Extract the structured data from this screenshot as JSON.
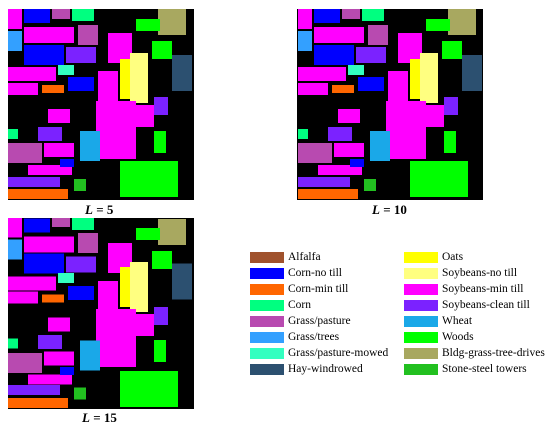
{
  "panels": [
    {
      "id": "l5",
      "caption_var": "L",
      "caption_eq": " = ",
      "caption_val": "5"
    },
    {
      "id": "l10",
      "caption_var": "L",
      "caption_eq": " = ",
      "caption_val": "10"
    },
    {
      "id": "l15",
      "caption_var": "L",
      "caption_eq": " = ",
      "caption_val": "15"
    }
  ],
  "legend": [
    {
      "label": "Alfalfa",
      "color": "#a0522d"
    },
    {
      "label": "Corn-no till",
      "color": "#0000ff"
    },
    {
      "label": "Corn-min till",
      "color": "#ff6600"
    },
    {
      "label": "Corn",
      "color": "#00ff80"
    },
    {
      "label": "Grass/pasture",
      "color": "#b84ab0"
    },
    {
      "label": "Grass/trees",
      "color": "#33a0ff"
    },
    {
      "label": "Grass/pasture-mowed",
      "color": "#33ffc0"
    },
    {
      "label": "Hay-windrowed",
      "color": "#2c5070"
    },
    {
      "label": "Oats",
      "color": "#ffff00"
    },
    {
      "label": "Soybeans-no till",
      "color": "#ffff80"
    },
    {
      "label": "Soybeans-min till",
      "color": "#ff00ff"
    },
    {
      "label": "Soybeans-clean till",
      "color": "#7b22ff"
    },
    {
      "label": "Wheat",
      "color": "#1aa8e8"
    },
    {
      "label": "Woods",
      "color": "#00ff00"
    },
    {
      "label": "Bldg-grass-tree-drives",
      "color": "#a8a860"
    },
    {
      "label": "Stone-steel towers",
      "color": "#22c020"
    }
  ]
}
